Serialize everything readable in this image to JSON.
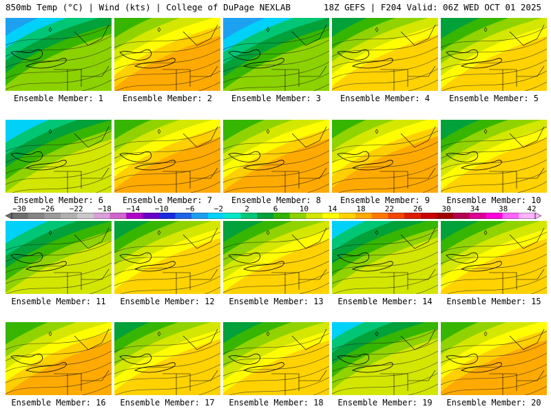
{
  "header": {
    "left": "850mb Temp (°C) | Wind (kts) | College of DuPage NEXLAB",
    "right": "18Z GEFS | F204 Valid: 06Z WED OCT 01 2025"
  },
  "colorbar": {
    "ticks": [
      "−30",
      "−26",
      "−22",
      "−18",
      "−14",
      "−10",
      "−6",
      "−2",
      "2",
      "6",
      "10",
      "14",
      "18",
      "22",
      "26",
      "30",
      "34",
      "38",
      "42"
    ],
    "colors": [
      "#6e6e6e",
      "#858585",
      "#9a9a9a",
      "#b0b0b0",
      "#c8c8c8",
      "#d9a0d9",
      "#cc66cc",
      "#b000c8",
      "#6a00c8",
      "#1a2adc",
      "#1e64e6",
      "#1e9ef0",
      "#00d2ff",
      "#00e6c8",
      "#00c878",
      "#00a03c",
      "#32b400",
      "#8cd200",
      "#d2e600",
      "#ffff00",
      "#ffd200",
      "#ffaa00",
      "#ff7800",
      "#f04600",
      "#dc1e00",
      "#c80000",
      "#a00000",
      "#b40050",
      "#dc0096",
      "#ff00dc",
      "#ff64ff",
      "#ffb4ff"
    ]
  },
  "panels": [
    {
      "label": "Ensemble Member: 1",
      "style": "cold"
    },
    {
      "label": "Ensemble Member: 2",
      "style": "warm"
    },
    {
      "label": "Ensemble Member: 3",
      "style": "cold"
    },
    {
      "label": "Ensemble Member: 4",
      "style": "mild"
    },
    {
      "label": "Ensemble Member: 5",
      "style": "mild"
    },
    {
      "label": "Ensemble Member: 6",
      "style": "cool"
    },
    {
      "label": "Ensemble Member: 7",
      "style": "warm"
    },
    {
      "label": "Ensemble Member: 8",
      "style": "warm"
    },
    {
      "label": "Ensemble Member: 9",
      "style": "warm"
    },
    {
      "label": "Ensemble Member: 10",
      "style": "mild"
    },
    {
      "label": "Ensemble Member: 11",
      "style": "cool"
    },
    {
      "label": "Ensemble Member: 12",
      "style": "mild"
    },
    {
      "label": "Ensemble Member: 13",
      "style": "mild"
    },
    {
      "label": "Ensemble Member: 14",
      "style": "cool"
    },
    {
      "label": "Ensemble Member: 15",
      "style": "mild"
    },
    {
      "label": "Ensemble Member: 16",
      "style": "warm"
    },
    {
      "label": "Ensemble Member: 17",
      "style": "mild"
    },
    {
      "label": "Ensemble Member: 18",
      "style": "mild"
    },
    {
      "label": "Ensemble Member: 19",
      "style": "cool"
    },
    {
      "label": "Ensemble Member: 20",
      "style": "warm"
    }
  ]
}
